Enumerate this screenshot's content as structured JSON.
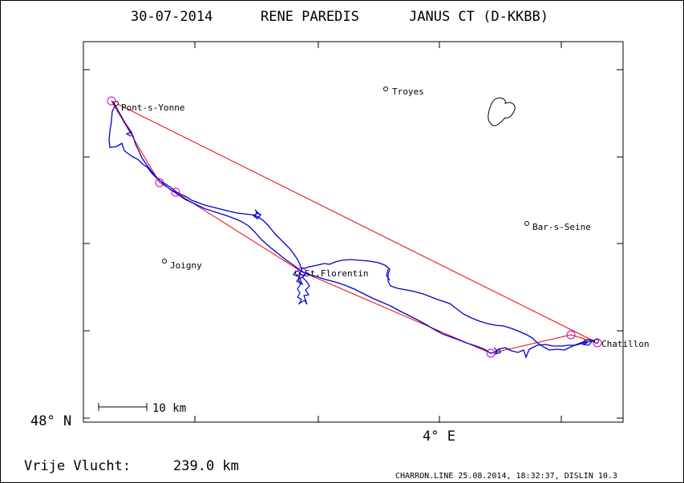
{
  "header": {
    "date": "30-07-2014",
    "pilot": "RENE PAREDIS",
    "glider": "JANUS CT (D-KKBB)"
  },
  "axes": {
    "lat_label": "48° N",
    "lon_label": "4° E"
  },
  "scale": {
    "label": "10 km"
  },
  "places": [
    {
      "name": "Pont-s-Yonne"
    },
    {
      "name": "Troyes"
    },
    {
      "name": "Bar-s-Seine"
    },
    {
      "name": "Joigny"
    },
    {
      "name": "St.Florentin"
    },
    {
      "name": "Chatillon"
    }
  ],
  "result": {
    "label": "Vrije Vlucht:",
    "value": "239.0 km"
  },
  "footer": {
    "credit": "CHARRON.LINE 25.08.2014, 18:32:37, DISLIN 10.3"
  },
  "colors": {
    "track": "#0000cc",
    "task": "#ee0000",
    "turnpoint": "#cc00cc",
    "frame": "#000000"
  }
}
